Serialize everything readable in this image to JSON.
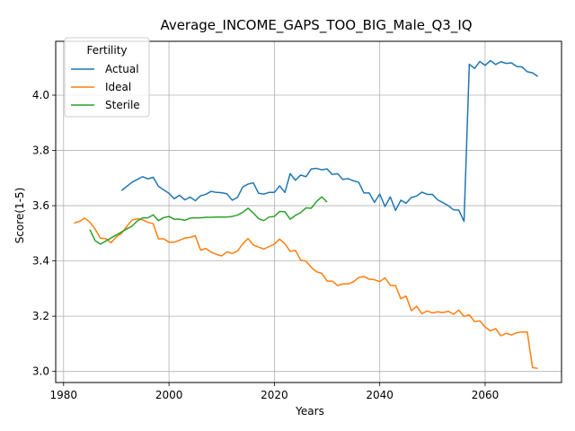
{
  "chart_data": {
    "type": "line",
    "title": "Average_INCOME_GAPS_TOO_BIG_Male_Q3_IQ",
    "xlabel": "Years",
    "ylabel": "Score(1-5)",
    "xlim": [
      1978.5,
      2074.5
    ],
    "ylim": [
      2.96,
      4.195
    ],
    "xticks": [
      1980,
      2000,
      2020,
      2040,
      2060
    ],
    "yticks": [
      3.0,
      3.2,
      3.4,
      3.6,
      3.8,
      4.0
    ],
    "xtick_labels": [
      "1980",
      "2000",
      "2020",
      "2040",
      "2060"
    ],
    "ytick_labels": [
      "3.0",
      "3.2",
      "3.4",
      "3.6",
      "3.8",
      "4.0"
    ],
    "grid": true,
    "legend": {
      "title": "Fertility",
      "position": "top-left"
    },
    "series": [
      {
        "name": "Actual",
        "color": "#1f77b4",
        "x": [
          1991,
          1992,
          1993,
          1994,
          1995,
          1996,
          1997,
          1998,
          1999,
          2000,
          2001,
          2002,
          2003,
          2004,
          2005,
          2006,
          2007,
          2008,
          2009,
          2010,
          2011,
          2012,
          2013,
          2014,
          2015,
          2016,
          2017,
          2018,
          2019,
          2020,
          2021,
          2022,
          2023,
          2024,
          2025,
          2026,
          2027,
          2028,
          2029,
          2030,
          2031,
          2032,
          2033,
          2034,
          2035,
          2036,
          2037,
          2038,
          2039,
          2040,
          2041,
          2042,
          2043,
          2044,
          2045,
          2046,
          2047,
          2048,
          2049,
          2050,
          2051,
          2052,
          2053,
          2054,
          2055,
          2056,
          2057,
          2058,
          2059,
          2060,
          2061,
          2062,
          2063,
          2064,
          2065,
          2066,
          2067,
          2068,
          2069,
          2070
        ],
        "values": [
          3.655,
          3.67,
          3.685,
          3.695,
          3.705,
          3.697,
          3.703,
          3.67,
          3.657,
          3.645,
          3.625,
          3.638,
          3.621,
          3.631,
          3.618,
          3.636,
          3.641,
          3.652,
          3.648,
          3.647,
          3.643,
          3.62,
          3.63,
          3.668,
          3.678,
          3.683,
          3.645,
          3.642,
          3.648,
          3.648,
          3.672,
          3.648,
          3.716,
          3.692,
          3.711,
          3.705,
          3.733,
          3.735,
          3.73,
          3.733,
          3.713,
          3.716,
          3.695,
          3.698,
          3.69,
          3.685,
          3.646,
          3.646,
          3.612,
          3.642,
          3.597,
          3.632,
          3.583,
          3.62,
          3.609,
          3.63,
          3.635,
          3.649,
          3.641,
          3.641,
          3.621,
          3.611,
          3.6,
          3.585,
          3.584,
          3.543,
          4.112,
          4.097,
          4.122,
          4.108,
          4.125,
          4.111,
          4.121,
          4.115,
          4.117,
          4.104,
          4.102,
          4.085,
          4.081,
          4.068
        ]
      },
      {
        "name": "Ideal",
        "color": "#ff7f0e",
        "x": [
          1982,
          1983,
          1984,
          1985,
          1986,
          1987,
          1988,
          1989,
          1990,
          1991,
          1992,
          1993,
          1994,
          1995,
          1996,
          1997,
          1998,
          1999,
          2000,
          2001,
          2002,
          2003,
          2004,
          2005,
          2006,
          2007,
          2008,
          2009,
          2010,
          2011,
          2012,
          2013,
          2014,
          2015,
          2016,
          2017,
          2018,
          2019,
          2020,
          2021,
          2022,
          2023,
          2024,
          2025,
          2026,
          2027,
          2028,
          2029,
          2030,
          2031,
          2032,
          2033,
          2034,
          2035,
          2036,
          2037,
          2038,
          2039,
          2040,
          2041,
          2042,
          2043,
          2044,
          2045,
          2046,
          2047,
          2048,
          2049,
          2050,
          2051,
          2052,
          2053,
          2054,
          2055,
          2056,
          2057,
          2058,
          2059,
          2060,
          2061,
          2062,
          2063,
          2064,
          2065,
          2066,
          2067,
          2068,
          2069,
          2070
        ],
        "values": [
          3.537,
          3.543,
          3.555,
          3.54,
          3.515,
          3.482,
          3.481,
          3.466,
          3.487,
          3.5,
          3.525,
          3.548,
          3.553,
          3.549,
          3.54,
          3.535,
          3.48,
          3.48,
          3.468,
          3.468,
          3.475,
          3.483,
          3.485,
          3.491,
          3.439,
          3.445,
          3.432,
          3.424,
          3.418,
          3.433,
          3.427,
          3.436,
          3.462,
          3.481,
          3.458,
          3.45,
          3.443,
          3.452,
          3.461,
          3.479,
          3.462,
          3.435,
          3.438,
          3.403,
          3.399,
          3.377,
          3.361,
          3.355,
          3.327,
          3.327,
          3.311,
          3.317,
          3.317,
          3.324,
          3.34,
          3.344,
          3.334,
          3.332,
          3.325,
          3.339,
          3.312,
          3.311,
          3.263,
          3.273,
          3.22,
          3.236,
          3.209,
          3.219,
          3.212,
          3.216,
          3.213,
          3.218,
          3.207,
          3.222,
          3.199,
          3.205,
          3.18,
          3.183,
          3.161,
          3.147,
          3.155,
          3.129,
          3.138,
          3.132,
          3.14,
          3.143,
          3.143,
          3.014,
          3.011
        ]
      },
      {
        "name": "Sterile",
        "color": "#2ca02c",
        "x": [
          1985,
          1986,
          1987,
          1988,
          1989,
          1990,
          1991,
          1992,
          1993,
          1994,
          1995,
          1996,
          1997,
          1998,
          1999,
          2000,
          2001,
          2002,
          2003,
          2004,
          2005,
          2006,
          2007,
          2008,
          2009,
          2010,
          2011,
          2012,
          2013,
          2014,
          2015,
          2016,
          2017,
          2018,
          2019,
          2020,
          2021,
          2022,
          2023,
          2024,
          2025,
          2026,
          2027,
          2028,
          2029,
          2030
        ],
        "values": [
          3.513,
          3.473,
          3.461,
          3.472,
          3.483,
          3.494,
          3.505,
          3.516,
          3.526,
          3.545,
          3.556,
          3.556,
          3.567,
          3.546,
          3.557,
          3.561,
          3.551,
          3.551,
          3.547,
          3.555,
          3.556,
          3.556,
          3.558,
          3.558,
          3.559,
          3.559,
          3.559,
          3.561,
          3.566,
          3.576,
          3.591,
          3.574,
          3.553,
          3.546,
          3.559,
          3.561,
          3.579,
          3.578,
          3.551,
          3.565,
          3.575,
          3.592,
          3.591,
          3.615,
          3.632,
          3.613
        ]
      }
    ]
  }
}
